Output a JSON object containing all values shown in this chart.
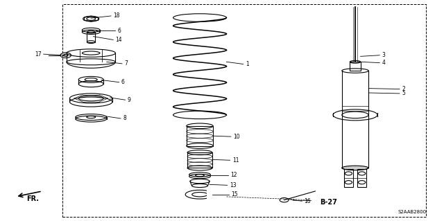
{
  "title": "",
  "background_color": "#ffffff",
  "border_color": "#000000",
  "line_color": "#000000",
  "text_color": "#000000",
  "diagram_code": "S2AAB2800",
  "page_ref": "B-27",
  "fr_label": "FR.",
  "figsize": [
    6.4,
    3.19
  ],
  "dpi": 100
}
